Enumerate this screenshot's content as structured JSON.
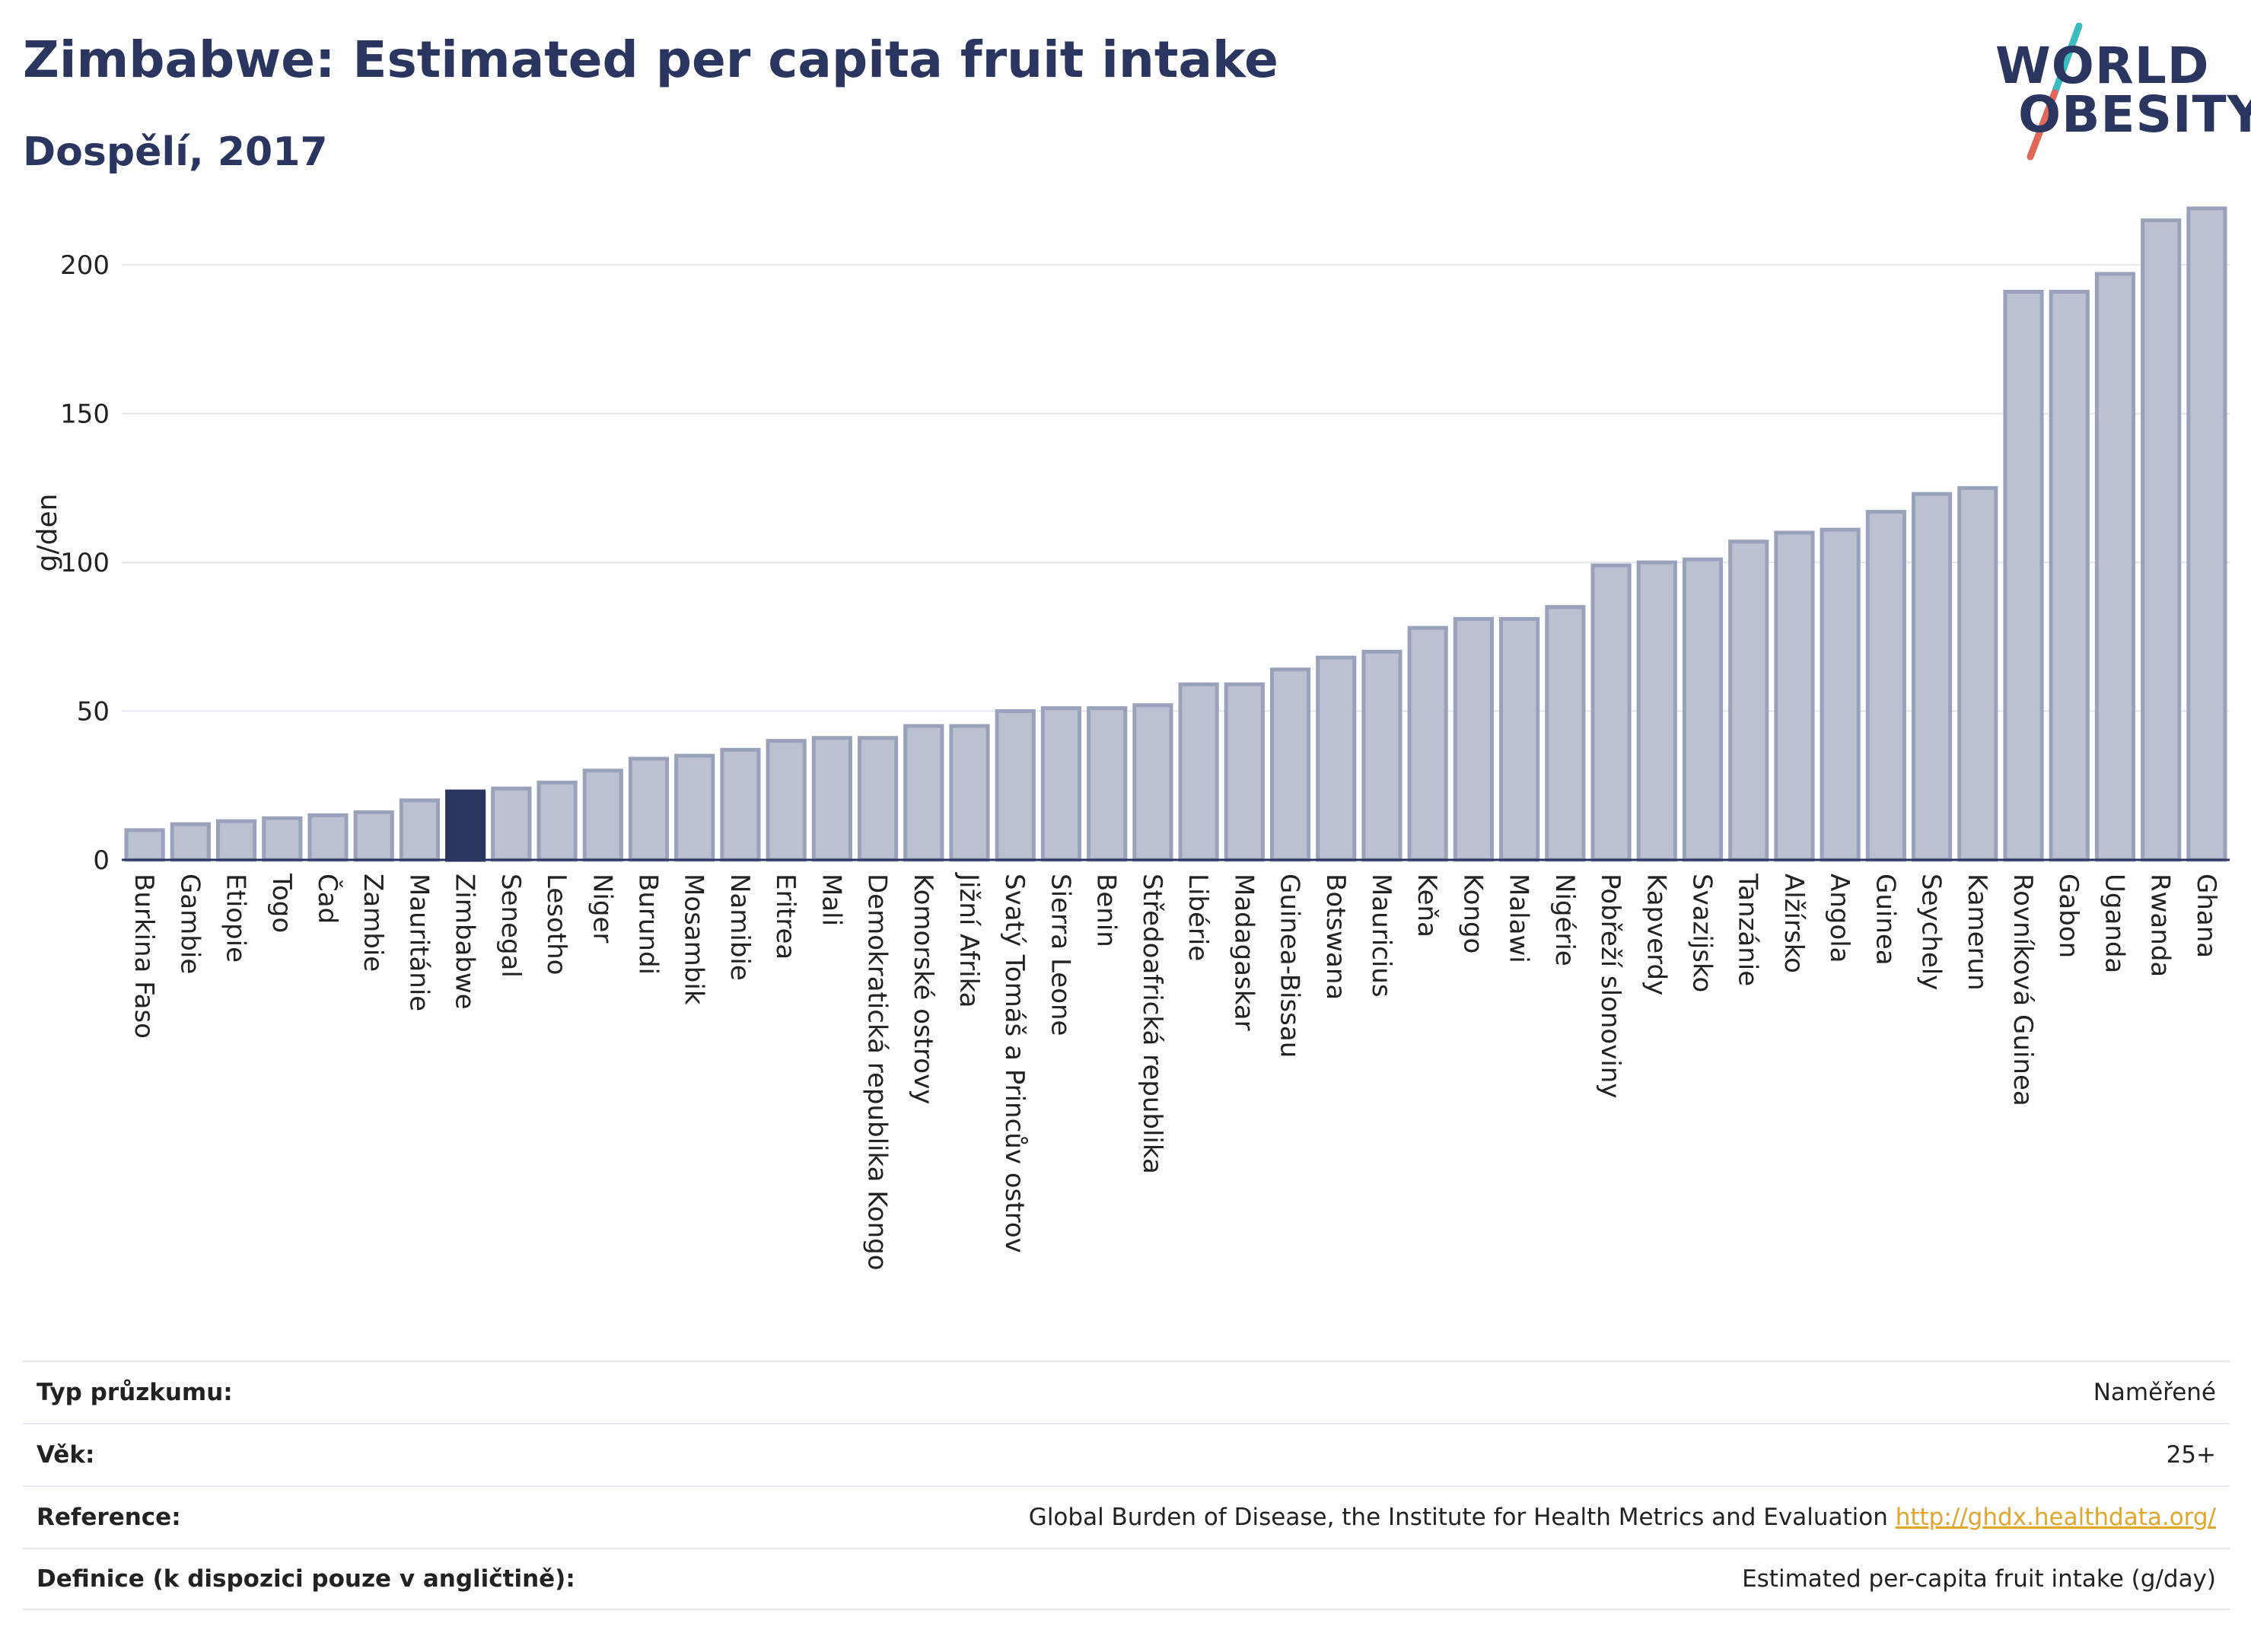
{
  "header": {
    "title": "Zimbabwe: Estimated per capita fruit intake",
    "subtitle": "Dospělí, 2017"
  },
  "logo": {
    "line1": "WORLD",
    "line2": "OBESITY",
    "slash_top_color": "#3dbcbf",
    "slash_bottom_color": "#e0685a"
  },
  "colors": {
    "bar_fill": "#bcc1d1",
    "bar_stroke": "#9aa2bb",
    "highlight_fill": "#2a3560",
    "grid": "#e4e6ec",
    "axis": "#2a3560"
  },
  "chart_data": {
    "type": "bar",
    "ylabel": "g/den",
    "ylim": [
      0,
      220
    ],
    "yticks": [
      0,
      50,
      100,
      150,
      200
    ],
    "grid": true,
    "highlight": "Zimbabwe",
    "categories": [
      "Burkina Faso",
      "Gambie",
      "Etiopie",
      "Togo",
      "Čad",
      "Zambie",
      "Mauritánie",
      "Zimbabwe",
      "Senegal",
      "Lesotho",
      "Niger",
      "Burundi",
      "Mosambik",
      "Namibie",
      "Eritrea",
      "Mali",
      "Demokratická republika Kongo",
      "Komorské ostrovy",
      "Jižní Afrika",
      "Svatý Tomáš a Princův ostrov",
      "Sierra Leone",
      "Benin",
      "Středoafrická republika",
      "Libérie",
      "Madagaskar",
      "Guinea-Bissau",
      "Botswana",
      "Mauricius",
      "Keňa",
      "Kongo",
      "Malawi",
      "Nigérie",
      "Pobřeží slonoviny",
      "Kapverdy",
      "Svazijsko",
      "Tanzánie",
      "Alžírsko",
      "Angola",
      "Guinea",
      "Seychely",
      "Kamerun",
      "Rovníková Guinea",
      "Gabon",
      "Uganda",
      "Rwanda",
      "Ghana"
    ],
    "values": [
      10,
      12,
      13,
      14,
      15,
      16,
      20,
      23,
      24,
      26,
      30,
      34,
      35,
      37,
      40,
      41,
      41,
      45,
      45,
      50,
      51,
      51,
      52,
      59,
      59,
      64,
      68,
      70,
      78,
      81,
      81,
      85,
      99,
      100,
      101,
      107,
      110,
      111,
      117,
      123,
      125,
      191,
      191,
      197,
      215,
      219
    ]
  },
  "info": [
    {
      "key": "Typ průzkumu:",
      "value": "Naměřené"
    },
    {
      "key": "Věk:",
      "value": "25+"
    },
    {
      "key": "Reference:",
      "value": "Global Burden of Disease, the Institute for Health Metrics and Evaluation",
      "link": "http://ghdx.healthdata.org/"
    },
    {
      "key": "Definice (k dispozici pouze v angličtině):",
      "value": "Estimated per-capita fruit intake (g/day)"
    }
  ]
}
